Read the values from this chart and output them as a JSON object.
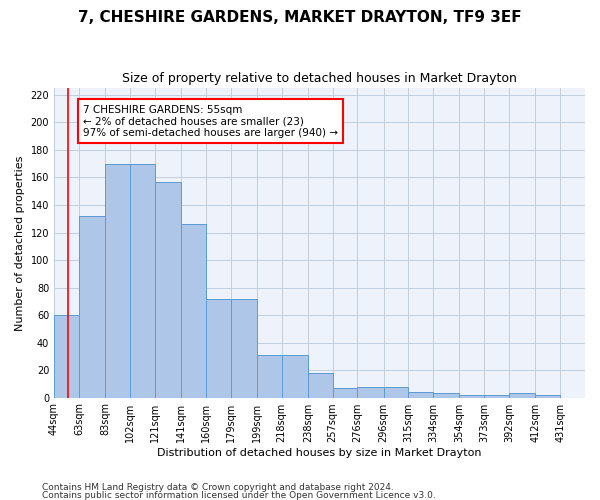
{
  "title": "7, CHESHIRE GARDENS, MARKET DRAYTON, TF9 3EF",
  "subtitle": "Size of property relative to detached houses in Market Drayton",
  "xlabel": "Distribution of detached houses by size in Market Drayton",
  "ylabel": "Number of detached properties",
  "footer_line1": "Contains HM Land Registry data © Crown copyright and database right 2024.",
  "footer_line2": "Contains public sector information licensed under the Open Government Licence v3.0.",
  "annotation_title": "7 CHESHIRE GARDENS: 55sqm",
  "annotation_line1": "← 2% of detached houses are smaller (23)",
  "annotation_line2": "97% of semi-detached houses are larger (940) →",
  "bar_left_edges": [
    44,
    63,
    83,
    102,
    121,
    141,
    160,
    179,
    199,
    218,
    238,
    257,
    276,
    296,
    315,
    334,
    354,
    373,
    392,
    412
  ],
  "bar_heights": [
    60,
    132,
    170,
    170,
    157,
    126,
    72,
    72,
    31,
    31,
    18,
    7,
    8,
    8,
    4,
    3,
    2,
    2,
    3,
    2
  ],
  "bar_color": "#aec6e8",
  "bar_edge_color": "#5b9bd5",
  "grid_color": "#c0cfe0",
  "background_color": "#eef2fa",
  "red_line_x": 55,
  "ylim": [
    0,
    225
  ],
  "yticks": [
    0,
    20,
    40,
    60,
    80,
    100,
    120,
    140,
    160,
    180,
    200,
    220
  ],
  "xtick_labels": [
    "44sqm",
    "63sqm",
    "83sqm",
    "102sqm",
    "121sqm",
    "141sqm",
    "160sqm",
    "179sqm",
    "199sqm",
    "218sqm",
    "238sqm",
    "257sqm",
    "276sqm",
    "296sqm",
    "315sqm",
    "334sqm",
    "354sqm",
    "373sqm",
    "392sqm",
    "412sqm",
    "431sqm"
  ],
  "title_fontsize": 11,
  "subtitle_fontsize": 9,
  "ylabel_fontsize": 8,
  "xlabel_fontsize": 8,
  "tick_fontsize": 7,
  "annotation_fontsize": 7.5,
  "footer_fontsize": 6.5
}
